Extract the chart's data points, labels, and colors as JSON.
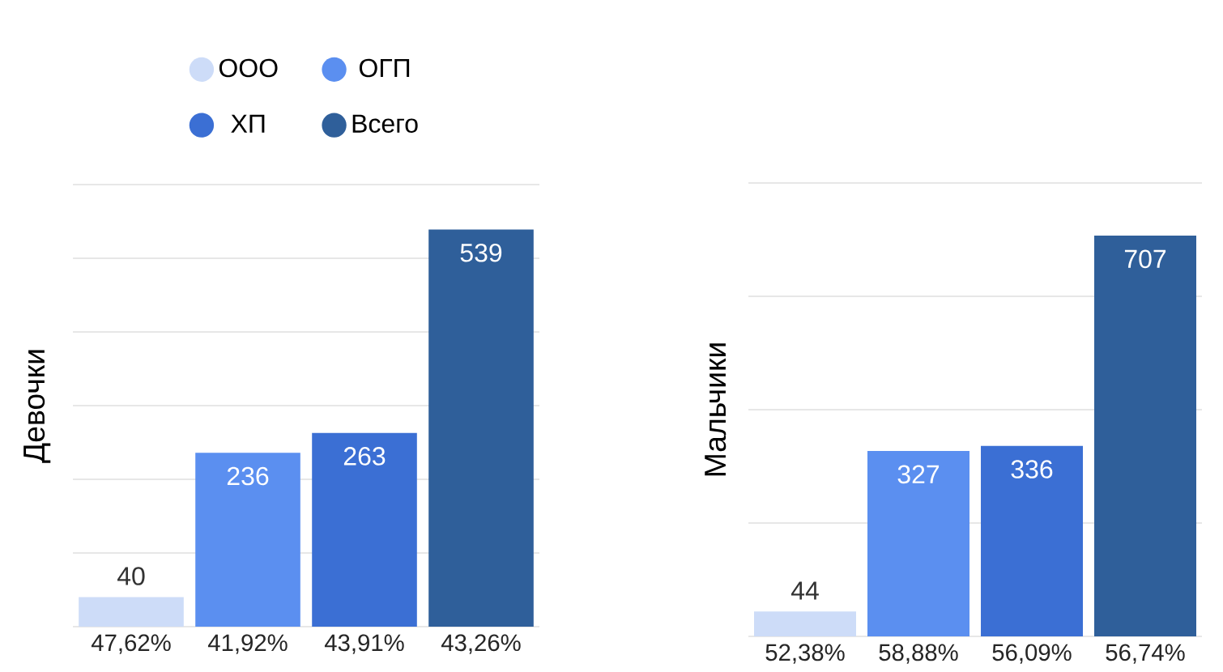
{
  "chart_data": [
    {
      "type": "bar",
      "ylabel": "Девочки",
      "categories": [
        "47,62%",
        "41,92%",
        "43,91%",
        "43,26%"
      ],
      "series": [
        {
          "name": "ООО",
          "color": "#cddcf8",
          "values": [
            40,
            null,
            null,
            null
          ]
        },
        {
          "name": "ОГП",
          "color": "#5b8ff0",
          "values": [
            null,
            236,
            null,
            null
          ]
        },
        {
          "name": "ХП",
          "color": "#3b6fd4",
          "values": [
            null,
            null,
            263,
            null
          ]
        },
        {
          "name": "Всего",
          "color": "#2f5f9a",
          "values": [
            null,
            null,
            null,
            539
          ]
        }
      ],
      "ylim": [
        0,
        600
      ],
      "yticks": [
        {
          "value": 0,
          "label": null
        },
        {
          "value": 100,
          "label": null
        },
        {
          "value": 200,
          "label": null
        },
        {
          "value": 300,
          "label": null
        },
        {
          "value": 400,
          "label": null
        },
        {
          "value": 500,
          "label": null
        },
        {
          "value": 600,
          "label": null
        }
      ],
      "grid": "y",
      "tick_labels": "x",
      "legend": "top",
      "data_labels": true
    },
    {
      "type": "bar",
      "ylabel": "Мальчики",
      "categories": [
        "52,38%",
        "58,88%",
        "56,09%",
        "56,74%"
      ],
      "series": [
        {
          "color": "#cddcf8",
          "values": [
            44,
            null,
            null,
            null
          ]
        },
        {
          "color": "#5b8ff0",
          "values": [
            null,
            327,
            null,
            null
          ]
        },
        {
          "color": "#3b6fd4",
          "values": [
            null,
            null,
            336,
            null
          ]
        },
        {
          "color": "#2f5f9a",
          "values": [
            null,
            null,
            null,
            707
          ]
        }
      ],
      "ylim": [
        0,
        800
      ],
      "yticks": [
        {
          "value": 0,
          "label": null
        },
        {
          "value": 200,
          "label": null
        },
        {
          "value": 400,
          "label": null
        },
        {
          "value": 600,
          "label": null
        },
        {
          "value": 800,
          "label": null
        }
      ],
      "grid": "y",
      "tick_labels": "x",
      "data_labels": true
    }
  ]
}
